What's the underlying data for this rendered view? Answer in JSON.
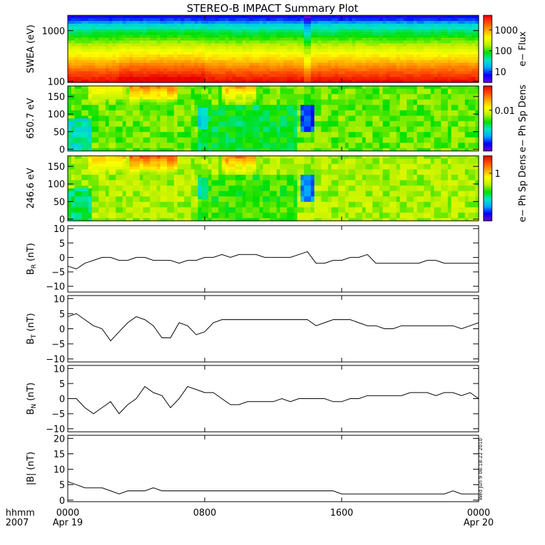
{
  "title": "STEREO-B IMPACT Summary Plot",
  "stamp": "Wed Jun  9 08:18:22 2010",
  "time_axis": {
    "row1_label": "hhmm",
    "row2_label": "2007",
    "ticks": [
      {
        "hours": 0,
        "label": "0000",
        "date": "Apr 19"
      },
      {
        "hours": 8,
        "label": "0800",
        "date": ""
      },
      {
        "hours": 16,
        "label": "1600",
        "date": ""
      },
      {
        "hours": 24,
        "label": "0000",
        "date": "Apr 20"
      }
    ],
    "range_hours": [
      0,
      24
    ]
  },
  "colors": {
    "line": "#000000",
    "colormap": [
      "#6a00d8",
      "#0000ff",
      "#00aaff",
      "#00e5c8",
      "#00e000",
      "#b8f000",
      "#ffff00",
      "#ffaa00",
      "#ff5000",
      "#e80000"
    ]
  },
  "chart_data": [
    {
      "type": "heatmap",
      "id": "swea",
      "ylabel": "SWEA (eV)",
      "colorbar_label": "e− Flux",
      "scale": "log",
      "ylim": [
        95,
        2000
      ],
      "yticks": [
        {
          "value": 100,
          "label": "100"
        },
        {
          "value": 1000,
          "label": "1000"
        }
      ],
      "colorbar_ticks": [
        {
          "value": 10,
          "label": "10"
        },
        {
          "value": 100,
          "label": "100"
        },
        {
          "value": 1000,
          "label": "1000"
        }
      ],
      "colorbar_range": [
        3,
        5000
      ]
    },
    {
      "type": "heatmap",
      "id": "pad650",
      "ylabel": "650.7 eV",
      "colorbar_label": "e− Ph Sp Dens",
      "ylim": [
        -5,
        180
      ],
      "yticks": [
        {
          "value": 0,
          "label": "0"
        },
        {
          "value": 50,
          "label": "50"
        },
        {
          "value": 100,
          "label": "100"
        },
        {
          "value": 150,
          "label": "150"
        }
      ],
      "colorbar_ticks": [
        {
          "value": 0.01,
          "label": "0.01"
        }
      ],
      "colorbar_range": [
        0.0005,
        0.06
      ]
    },
    {
      "type": "heatmap",
      "id": "pad246",
      "ylabel": "246.6 eV",
      "colorbar_label": "e− Ph Sp Dens",
      "ylim": [
        -5,
        180
      ],
      "yticks": [
        {
          "value": 0,
          "label": "0"
        },
        {
          "value": 50,
          "label": "50"
        },
        {
          "value": 100,
          "label": "100"
        },
        {
          "value": 150,
          "label": "150"
        }
      ],
      "colorbar_ticks": [
        {
          "value": 1,
          "label": "1"
        }
      ],
      "colorbar_range": [
        0.05,
        3
      ]
    },
    {
      "type": "line",
      "id": "br",
      "ylabel_main": "B",
      "ylabel_sub": "R",
      "ylabel_unit": " (nT)",
      "ylim": [
        -12,
        11
      ],
      "yticks": [
        {
          "value": -10,
          "label": "−10"
        },
        {
          "value": -5,
          "label": "−5"
        },
        {
          "value": 0,
          "label": "0"
        },
        {
          "value": 5,
          "label": "5"
        },
        {
          "value": 10,
          "label": "10"
        }
      ],
      "x": [
        0,
        0.5,
        1,
        1.5,
        2,
        2.5,
        3,
        3.5,
        4,
        4.5,
        5,
        5.5,
        6,
        6.5,
        7,
        7.5,
        8,
        8.5,
        9,
        9.5,
        10,
        10.5,
        11,
        11.5,
        12,
        12.5,
        13,
        13.5,
        14,
        14.5,
        15,
        15.5,
        16,
        16.5,
        17,
        17.5,
        18,
        18.5,
        19,
        19.5,
        20,
        20.5,
        21,
        21.5,
        22,
        22.5,
        23,
        23.5,
        24
      ],
      "y": [
        -3,
        -4,
        -2,
        -1,
        0,
        0,
        -1,
        -1,
        0,
        0,
        -1,
        -1,
        -1,
        -2,
        -1,
        -1,
        0,
        0,
        1,
        0,
        1,
        1,
        1,
        0,
        0,
        0,
        0,
        1,
        2,
        -2,
        -2,
        -1,
        -1,
        0,
        0,
        1,
        -2,
        -2,
        -2,
        -2,
        -2,
        -2,
        -1,
        -1,
        -2,
        -2,
        -2,
        -2,
        -2
      ]
    },
    {
      "type": "line",
      "id": "bt",
      "ylabel_main": "B",
      "ylabel_sub": "T",
      "ylabel_unit": " (nT)",
      "ylim": [
        -11,
        11
      ],
      "yticks": [
        {
          "value": -10,
          "label": "−10"
        },
        {
          "value": -5,
          "label": "−5"
        },
        {
          "value": 0,
          "label": "0"
        },
        {
          "value": 5,
          "label": "5"
        },
        {
          "value": 10,
          "label": "10"
        }
      ],
      "x": [
        0,
        0.5,
        1,
        1.5,
        2,
        2.5,
        3,
        3.5,
        4,
        4.5,
        5,
        5.5,
        6,
        6.5,
        7,
        7.5,
        8,
        8.5,
        9,
        9.5,
        10,
        10.5,
        11,
        11.5,
        12,
        12.5,
        13,
        13.5,
        14,
        14.5,
        15,
        15.5,
        16,
        16.5,
        17,
        17.5,
        18,
        18.5,
        19,
        19.5,
        20,
        20.5,
        21,
        21.5,
        22,
        22.5,
        23,
        23.5,
        24
      ],
      "y": [
        4,
        5,
        3,
        1,
        0,
        -4,
        -1,
        2,
        4,
        3,
        1,
        -3,
        -3,
        2,
        1,
        -2,
        -1,
        2,
        3,
        3,
        3,
        3,
        3,
        3,
        3,
        3,
        3,
        3,
        3,
        1,
        2,
        3,
        3,
        3,
        2,
        1,
        1,
        0,
        0,
        1,
        1,
        1,
        1,
        1,
        1,
        1,
        0,
        1,
        2
      ]
    },
    {
      "type": "line",
      "id": "bn",
      "ylabel_main": "B",
      "ylabel_sub": "N",
      "ylabel_unit": " (nT)",
      "ylim": [
        -11,
        11
      ],
      "yticks": [
        {
          "value": -10,
          "label": "−10"
        },
        {
          "value": -5,
          "label": "−5"
        },
        {
          "value": 0,
          "label": "0"
        },
        {
          "value": 5,
          "label": "5"
        },
        {
          "value": 10,
          "label": "10"
        }
      ],
      "x": [
        0,
        0.5,
        1,
        1.5,
        2,
        2.5,
        3,
        3.5,
        4,
        4.5,
        5,
        5.5,
        6,
        6.5,
        7,
        7.5,
        8,
        8.5,
        9,
        9.5,
        10,
        10.5,
        11,
        11.5,
        12,
        12.5,
        13,
        13.5,
        14,
        14.5,
        15,
        15.5,
        16,
        16.5,
        17,
        17.5,
        18,
        18.5,
        19,
        19.5,
        20,
        20.5,
        21,
        21.5,
        22,
        22.5,
        23,
        23.5,
        24
      ],
      "y": [
        0,
        0,
        -3,
        -5,
        -3,
        -1,
        -5,
        -2,
        0,
        4,
        2,
        1,
        -3,
        0,
        4,
        3,
        2,
        2,
        0,
        -2,
        -2,
        -1,
        -1,
        -1,
        -1,
        0,
        -1,
        0,
        0,
        0,
        0,
        -1,
        -1,
        0,
        0,
        1,
        1,
        1,
        1,
        1,
        2,
        2,
        2,
        1,
        2,
        2,
        1,
        2,
        0
      ]
    },
    {
      "type": "line",
      "id": "bmag",
      "ylabel_main": "|B|",
      "ylabel_sub": "",
      "ylabel_unit": " (nT)",
      "ylim": [
        -0.5,
        21
      ],
      "yticks": [
        {
          "value": 0,
          "label": "0"
        },
        {
          "value": 5,
          "label": "5"
        },
        {
          "value": 10,
          "label": "10"
        },
        {
          "value": 15,
          "label": "15"
        },
        {
          "value": 20,
          "label": "20"
        }
      ],
      "x": [
        0,
        0.5,
        1,
        1.5,
        2,
        2.5,
        3,
        3.5,
        4,
        4.5,
        5,
        5.5,
        6,
        6.5,
        7,
        7.5,
        8,
        8.5,
        9,
        9.5,
        10,
        10.5,
        11,
        11.5,
        12,
        12.5,
        13,
        13.5,
        14,
        14.5,
        15,
        15.5,
        16,
        16.5,
        17,
        17.5,
        18,
        18.5,
        19,
        19.5,
        20,
        20.5,
        21,
        21.5,
        22,
        22.5,
        23,
        23.5,
        24
      ],
      "y": [
        6,
        5,
        4,
        4,
        4,
        3,
        2,
        3,
        3,
        3,
        4,
        3,
        3,
        3,
        3,
        3,
        3,
        3,
        3,
        3,
        3,
        3,
        3,
        3,
        3,
        3,
        3,
        3,
        3,
        3,
        3,
        3,
        2,
        2,
        2,
        2,
        2,
        2,
        2,
        2,
        2,
        2,
        2,
        2,
        2,
        3,
        2,
        2,
        2
      ]
    }
  ]
}
